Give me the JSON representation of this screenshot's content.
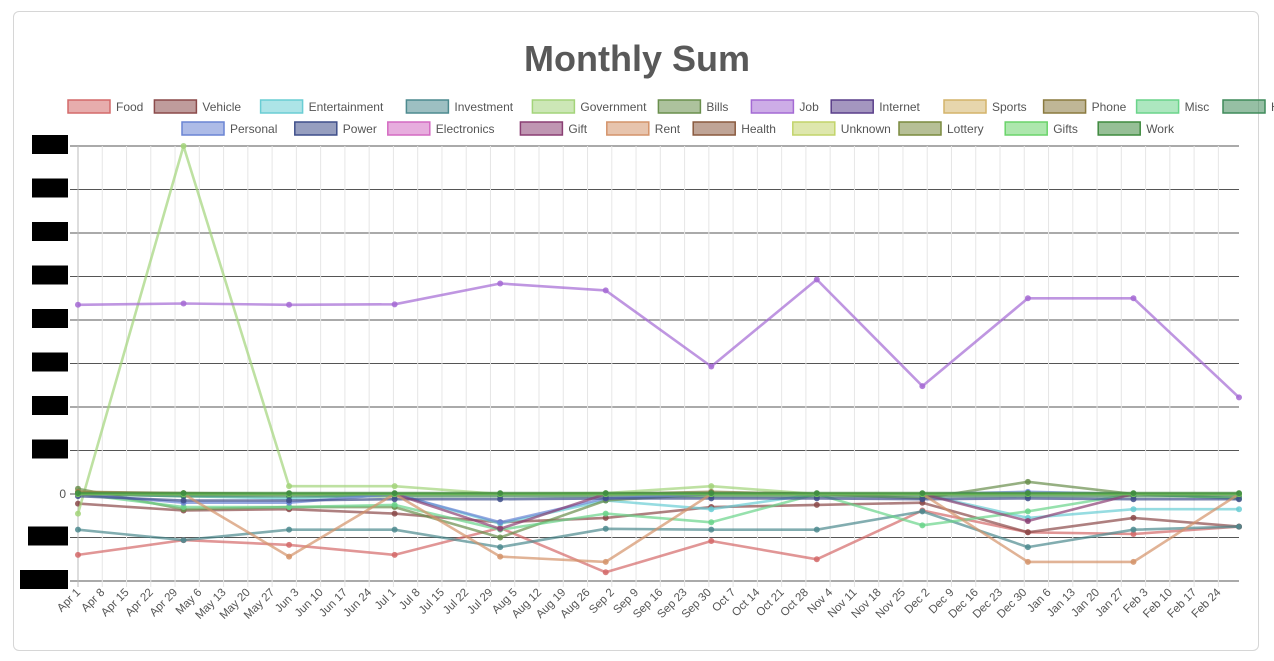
{
  "chart_data": {
    "type": "line",
    "title": "Monthly Sum",
    "xlabel": "",
    "ylabel": "",
    "grid": true,
    "legend_position": "top",
    "x_ticks": [
      "Apr 1",
      "Apr 8",
      "Apr 15",
      "Apr 22",
      "Apr 29",
      "May 6",
      "May 13",
      "May 20",
      "May 27",
      "Jun 3",
      "Jun 10",
      "Jun 17",
      "Jun 24",
      "Jul 1",
      "Jul 8",
      "Jul 15",
      "Jul 22",
      "Jul 29",
      "Aug 5",
      "Aug 12",
      "Aug 19",
      "Aug 26",
      "Sep 2",
      "Sep 9",
      "Sep 16",
      "Sep 23",
      "Sep 30",
      "Oct 7",
      "Oct 14",
      "Oct 21",
      "Oct 28",
      "Nov 4",
      "Nov 11",
      "Nov 18",
      "Nov 25",
      "Dec 2",
      "Dec 9",
      "Dec 16",
      "Dec 23",
      "Dec 30",
      "Jan 6",
      "Jan 13",
      "Jan 20",
      "Jan 27",
      "Feb 3",
      "Feb 10",
      "Feb 17",
      "Feb 24"
    ],
    "x": [
      "Apr 1",
      "May 1",
      "Jun 1",
      "Jul 1",
      "Aug 1",
      "Sep 1",
      "Oct 1",
      "Nov 1",
      "Dec 1",
      "Jan 1",
      "Feb 1",
      "Mar 1"
    ],
    "y_tick_labels": [
      "0"
    ],
    "y_gridlines": 11,
    "series": [
      {
        "name": "Food",
        "color": "#d46a6a",
        "values": [
          -1.4,
          -1.06,
          -1.17,
          -1.4,
          -0.78,
          -1.8,
          -1.08,
          -1.5,
          -0.38,
          -0.88,
          -0.92,
          -0.75
        ]
      },
      {
        "name": "Vehicle",
        "color": "#8b4a4a",
        "values": [
          -0.22,
          -0.38,
          -0.35,
          -0.45,
          -0.65,
          -0.55,
          -0.3,
          -0.25,
          -0.2,
          -0.88,
          -0.55,
          -0.75
        ]
      },
      {
        "name": "Entertainment",
        "color": "#6acdd4",
        "values": [
          0,
          -0.05,
          -0.1,
          0,
          -0.68,
          -0.15,
          -0.35,
          0,
          0,
          -0.55,
          -0.35,
          -0.35
        ]
      },
      {
        "name": "Investment",
        "color": "#4d8a8f",
        "values": [
          -0.82,
          -1.06,
          -0.82,
          -0.82,
          -1.22,
          -0.8,
          -0.82,
          -0.82,
          -0.4,
          -1.22,
          -0.82,
          -0.75
        ]
      },
      {
        "name": "Government",
        "color": "#a3d47a",
        "values": [
          -0.45,
          8.0,
          0.18,
          0.18,
          0,
          0.02,
          0.18,
          0,
          0,
          0,
          0,
          0
        ]
      },
      {
        "name": "Bills",
        "color": "#6a8f4d",
        "values": [
          0.12,
          -0.35,
          -0.3,
          -0.3,
          -1.0,
          -0.15,
          0,
          0,
          -0.1,
          0.28,
          0,
          -0.1
        ]
      },
      {
        "name": "Job",
        "color": "#a46ad4",
        "values": [
          4.35,
          4.38,
          4.35,
          4.36,
          4.84,
          4.68,
          2.93,
          4.93,
          2.48,
          4.5,
          4.5,
          2.22
        ]
      },
      {
        "name": "Internet",
        "color": "#5a3f8a",
        "values": [
          0,
          0,
          0,
          0,
          0,
          0,
          0,
          0,
          0,
          0,
          0,
          0
        ]
      },
      {
        "name": "Sports",
        "color": "#d4b46a",
        "values": [
          0.05,
          0,
          0,
          0,
          0,
          0,
          0,
          0,
          0,
          0,
          0,
          0
        ]
      },
      {
        "name": "Phone",
        "color": "#8a7a3f",
        "values": [
          0.05,
          0.02,
          0,
          0,
          0,
          0,
          0.05,
          0,
          0,
          0,
          0,
          0
        ]
      },
      {
        "name": "Misc",
        "color": "#6ad48a",
        "values": [
          0,
          -0.3,
          -0.3,
          -0.25,
          -0.82,
          -0.45,
          -0.65,
          0,
          -0.72,
          -0.4,
          0,
          -0.1
        ]
      },
      {
        "name": "Home",
        "color": "#3f8a5a",
        "values": [
          0,
          -0.05,
          -0.05,
          -0.05,
          -0.05,
          -0.05,
          -0.05,
          -0.05,
          -0.05,
          -0.05,
          -0.05,
          -0.05
        ]
      },
      {
        "name": "Personal",
        "color": "#6a84d4",
        "values": [
          0,
          -0.2,
          -0.2,
          0,
          -0.65,
          -0.1,
          0,
          0,
          0,
          0.05,
          0,
          0
        ]
      },
      {
        "name": "Power",
        "color": "#3f4f8a",
        "values": [
          -0.05,
          -0.15,
          -0.15,
          -0.12,
          -0.12,
          -0.1,
          -0.1,
          -0.1,
          -0.12,
          -0.1,
          -0.12,
          -0.12
        ]
      },
      {
        "name": "Electronics",
        "color": "#d46ac2",
        "values": [
          0,
          0,
          0,
          0,
          0,
          0,
          0,
          0,
          0,
          0,
          0,
          0
        ]
      },
      {
        "name": "Gift",
        "color": "#8a3f73",
        "values": [
          0,
          0,
          0,
          0,
          -0.8,
          0,
          0,
          0,
          0,
          -0.62,
          0,
          0
        ]
      },
      {
        "name": "Rent",
        "color": "#d4936a",
        "values": [
          0,
          0,
          -1.44,
          0,
          -1.44,
          -1.56,
          0,
          0,
          0,
          -1.56,
          -1.56,
          0
        ]
      },
      {
        "name": "Health",
        "color": "#8a5a3f",
        "values": [
          0,
          0,
          0,
          0,
          0,
          0,
          0,
          0,
          0,
          0,
          0,
          0
        ]
      },
      {
        "name": "Unknown",
        "color": "#c2d46a",
        "values": [
          0,
          0,
          0,
          0,
          0,
          0,
          0,
          0,
          0,
          0,
          0,
          0
        ]
      },
      {
        "name": "Lottery",
        "color": "#7a8a3f",
        "values": [
          0,
          0,
          0,
          0,
          0,
          0,
          0,
          0,
          0,
          0,
          0,
          0
        ]
      },
      {
        "name": "Gifts",
        "color": "#6ad46a",
        "values": [
          0,
          0,
          0,
          0,
          0,
          0,
          0,
          0,
          0,
          0,
          0,
          0
        ]
      },
      {
        "name": "Work",
        "color": "#3f8a3f",
        "values": [
          0.02,
          0.02,
          0.02,
          0.02,
          0.02,
          0.02,
          0.02,
          0.02,
          0.02,
          0.02,
          0.02,
          0.02
        ]
      }
    ]
  }
}
